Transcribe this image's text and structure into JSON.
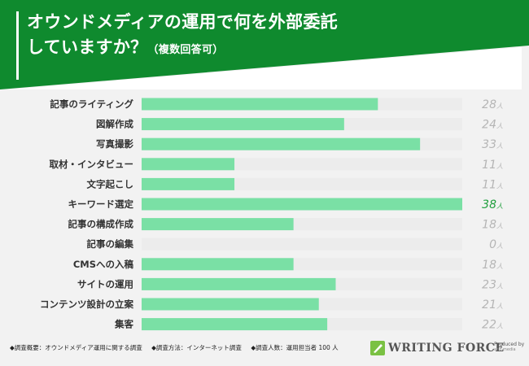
{
  "title": {
    "main": "オウンドメディアの運用で何を外部委託",
    "line2": "していますか？",
    "note": "（複数回答可）"
  },
  "chart_data": {
    "type": "bar",
    "orientation": "horizontal",
    "categories": [
      "記事のライティング",
      "図解作成",
      "写真撮影",
      "取材・インタビュー",
      "文字起こし",
      "キーワード選定",
      "記事の構成作成",
      "記事の編集",
      "CMSへの入稿",
      "サイトの運用",
      "コンテンツ設計の立案",
      "集客"
    ],
    "values": [
      28,
      24,
      33,
      11,
      11,
      38,
      18,
      0,
      18,
      23,
      21,
      22
    ],
    "value_suffix": "人",
    "xlim": [
      0,
      38
    ],
    "highlight_index": 5
  },
  "colors": {
    "header": "#0f8a2e",
    "bar": "#7ae0a5",
    "track": "#ececec",
    "value": "#b5b5b5",
    "value_highlight": "#1e9e3c"
  },
  "footer": {
    "items": [
      "◆調査概要：オウンドメディア運用に関する調査",
      "◆調査方法：インターネット調査",
      "◆調査人数：運用担当者 100 人"
    ]
  },
  "brand": {
    "name": "WRITING FORCE",
    "by_line1": "Produced by",
    "by_line2": "and media"
  }
}
